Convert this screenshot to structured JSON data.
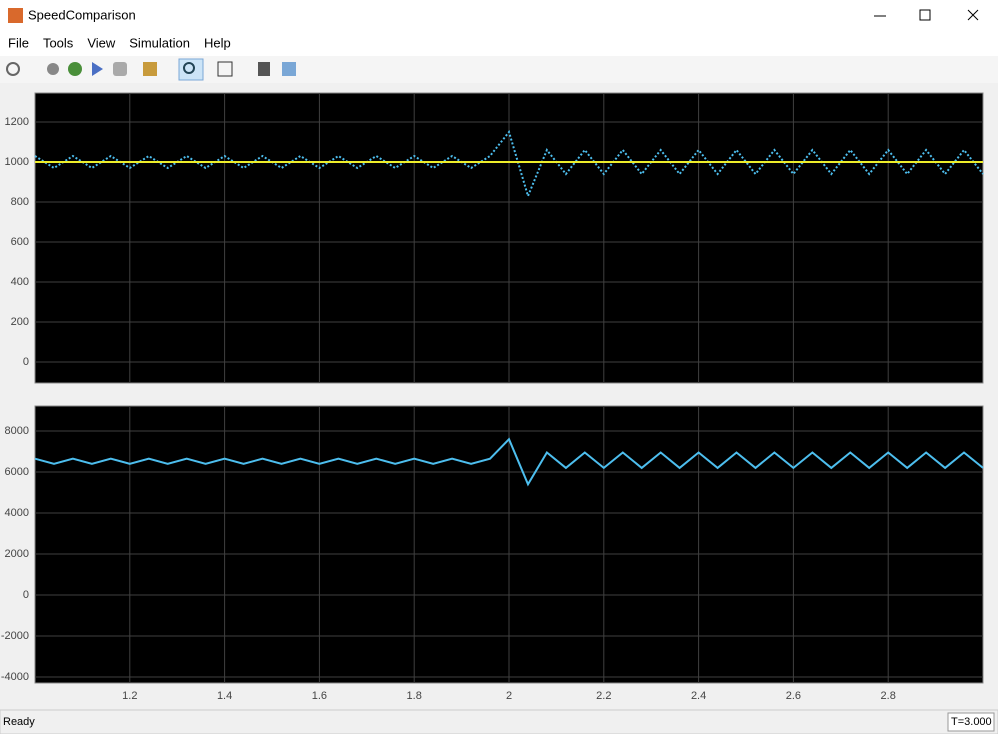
{
  "window": {
    "title": "SpeedComparison"
  },
  "menu": [
    "File",
    "Tools",
    "View",
    "Simulation",
    "Help"
  ],
  "status": {
    "left": "Ready",
    "right": "T=3.000"
  },
  "chart_data": [
    {
      "type": "line",
      "x": [
        1.0,
        1.04,
        1.08,
        1.12,
        1.16,
        1.2,
        1.24,
        1.28,
        1.32,
        1.36,
        1.4,
        1.44,
        1.48,
        1.52,
        1.56,
        1.6,
        1.64,
        1.68,
        1.72,
        1.76,
        1.8,
        1.84,
        1.88,
        1.92,
        1.96,
        2.0,
        2.04,
        2.08,
        2.12,
        2.16,
        2.2,
        2.24,
        2.28,
        2.32,
        2.36,
        2.4,
        2.44,
        2.48,
        2.52,
        2.56,
        2.6,
        2.64,
        2.68,
        2.72,
        2.76,
        2.8,
        2.84,
        2.88,
        2.92,
        2.96,
        3.0
      ],
      "series": [
        {
          "color": "#4dbeee",
          "dashed": true,
          "values": [
            1030,
            970,
            1030,
            970,
            1030,
            970,
            1030,
            970,
            1030,
            970,
            1030,
            970,
            1030,
            970,
            1030,
            970,
            1030,
            970,
            1030,
            970,
            1030,
            970,
            1030,
            970,
            1030,
            1150,
            830,
            1060,
            940,
            1060,
            940,
            1060,
            940,
            1060,
            940,
            1060,
            940,
            1060,
            940,
            1060,
            940,
            1060,
            940,
            1060,
            940,
            1060,
            940,
            1060,
            940,
            1060,
            940
          ]
        },
        {
          "color": "#eded2a",
          "dashed": false,
          "values": [
            1000,
            1000,
            1000,
            1000,
            1000,
            1000,
            1000,
            1000,
            1000,
            1000,
            1000,
            1000,
            1000,
            1000,
            1000,
            1000,
            1000,
            1000,
            1000,
            1000,
            1000,
            1000,
            1000,
            1000,
            1000,
            1000,
            1000,
            1000,
            1000,
            1000,
            1000,
            1000,
            1000,
            1000,
            1000,
            1000,
            1000,
            1000,
            1000,
            1000,
            1000,
            1000,
            1000,
            1000,
            1000,
            1000,
            1000,
            1000,
            1000,
            1000,
            1000
          ]
        }
      ],
      "xlim": [
        1,
        3
      ],
      "ylim": [
        -105,
        1345
      ],
      "yticks": [
        0,
        200,
        400,
        600,
        800,
        1000,
        1200
      ],
      "grid": true
    },
    {
      "type": "line",
      "x": [
        1.0,
        1.04,
        1.08,
        1.12,
        1.16,
        1.2,
        1.24,
        1.28,
        1.32,
        1.36,
        1.4,
        1.44,
        1.48,
        1.52,
        1.56,
        1.6,
        1.64,
        1.68,
        1.72,
        1.76,
        1.8,
        1.84,
        1.88,
        1.92,
        1.96,
        2.0,
        2.04,
        2.08,
        2.12,
        2.16,
        2.2,
        2.24,
        2.28,
        2.32,
        2.36,
        2.4,
        2.44,
        2.48,
        2.52,
        2.56,
        2.6,
        2.64,
        2.68,
        2.72,
        2.76,
        2.8,
        2.84,
        2.88,
        2.92,
        2.96,
        3.0
      ],
      "series": [
        {
          "color": "#4dbeee",
          "dashed": false,
          "values": [
            6650,
            6400,
            6650,
            6400,
            6650,
            6400,
            6650,
            6400,
            6650,
            6400,
            6650,
            6400,
            6650,
            6400,
            6650,
            6400,
            6650,
            6400,
            6650,
            6400,
            6650,
            6400,
            6650,
            6400,
            6650,
            7600,
            5400,
            6950,
            6200,
            6950,
            6200,
            6950,
            6200,
            6950,
            6200,
            6950,
            6200,
            6950,
            6200,
            6950,
            6200,
            6950,
            6200,
            6950,
            6200,
            6950,
            6200,
            6950,
            6200,
            6950,
            6200
          ]
        }
      ],
      "xlim": [
        1,
        3
      ],
      "ylim": [
        -4290,
        9220
      ],
      "xticks": [
        1.2,
        1.4,
        1.6,
        1.8,
        2,
        2.2,
        2.4,
        2.6,
        2.8
      ],
      "yticks": [
        -4000,
        -2000,
        0,
        2000,
        4000,
        6000,
        8000
      ],
      "grid": true
    }
  ]
}
